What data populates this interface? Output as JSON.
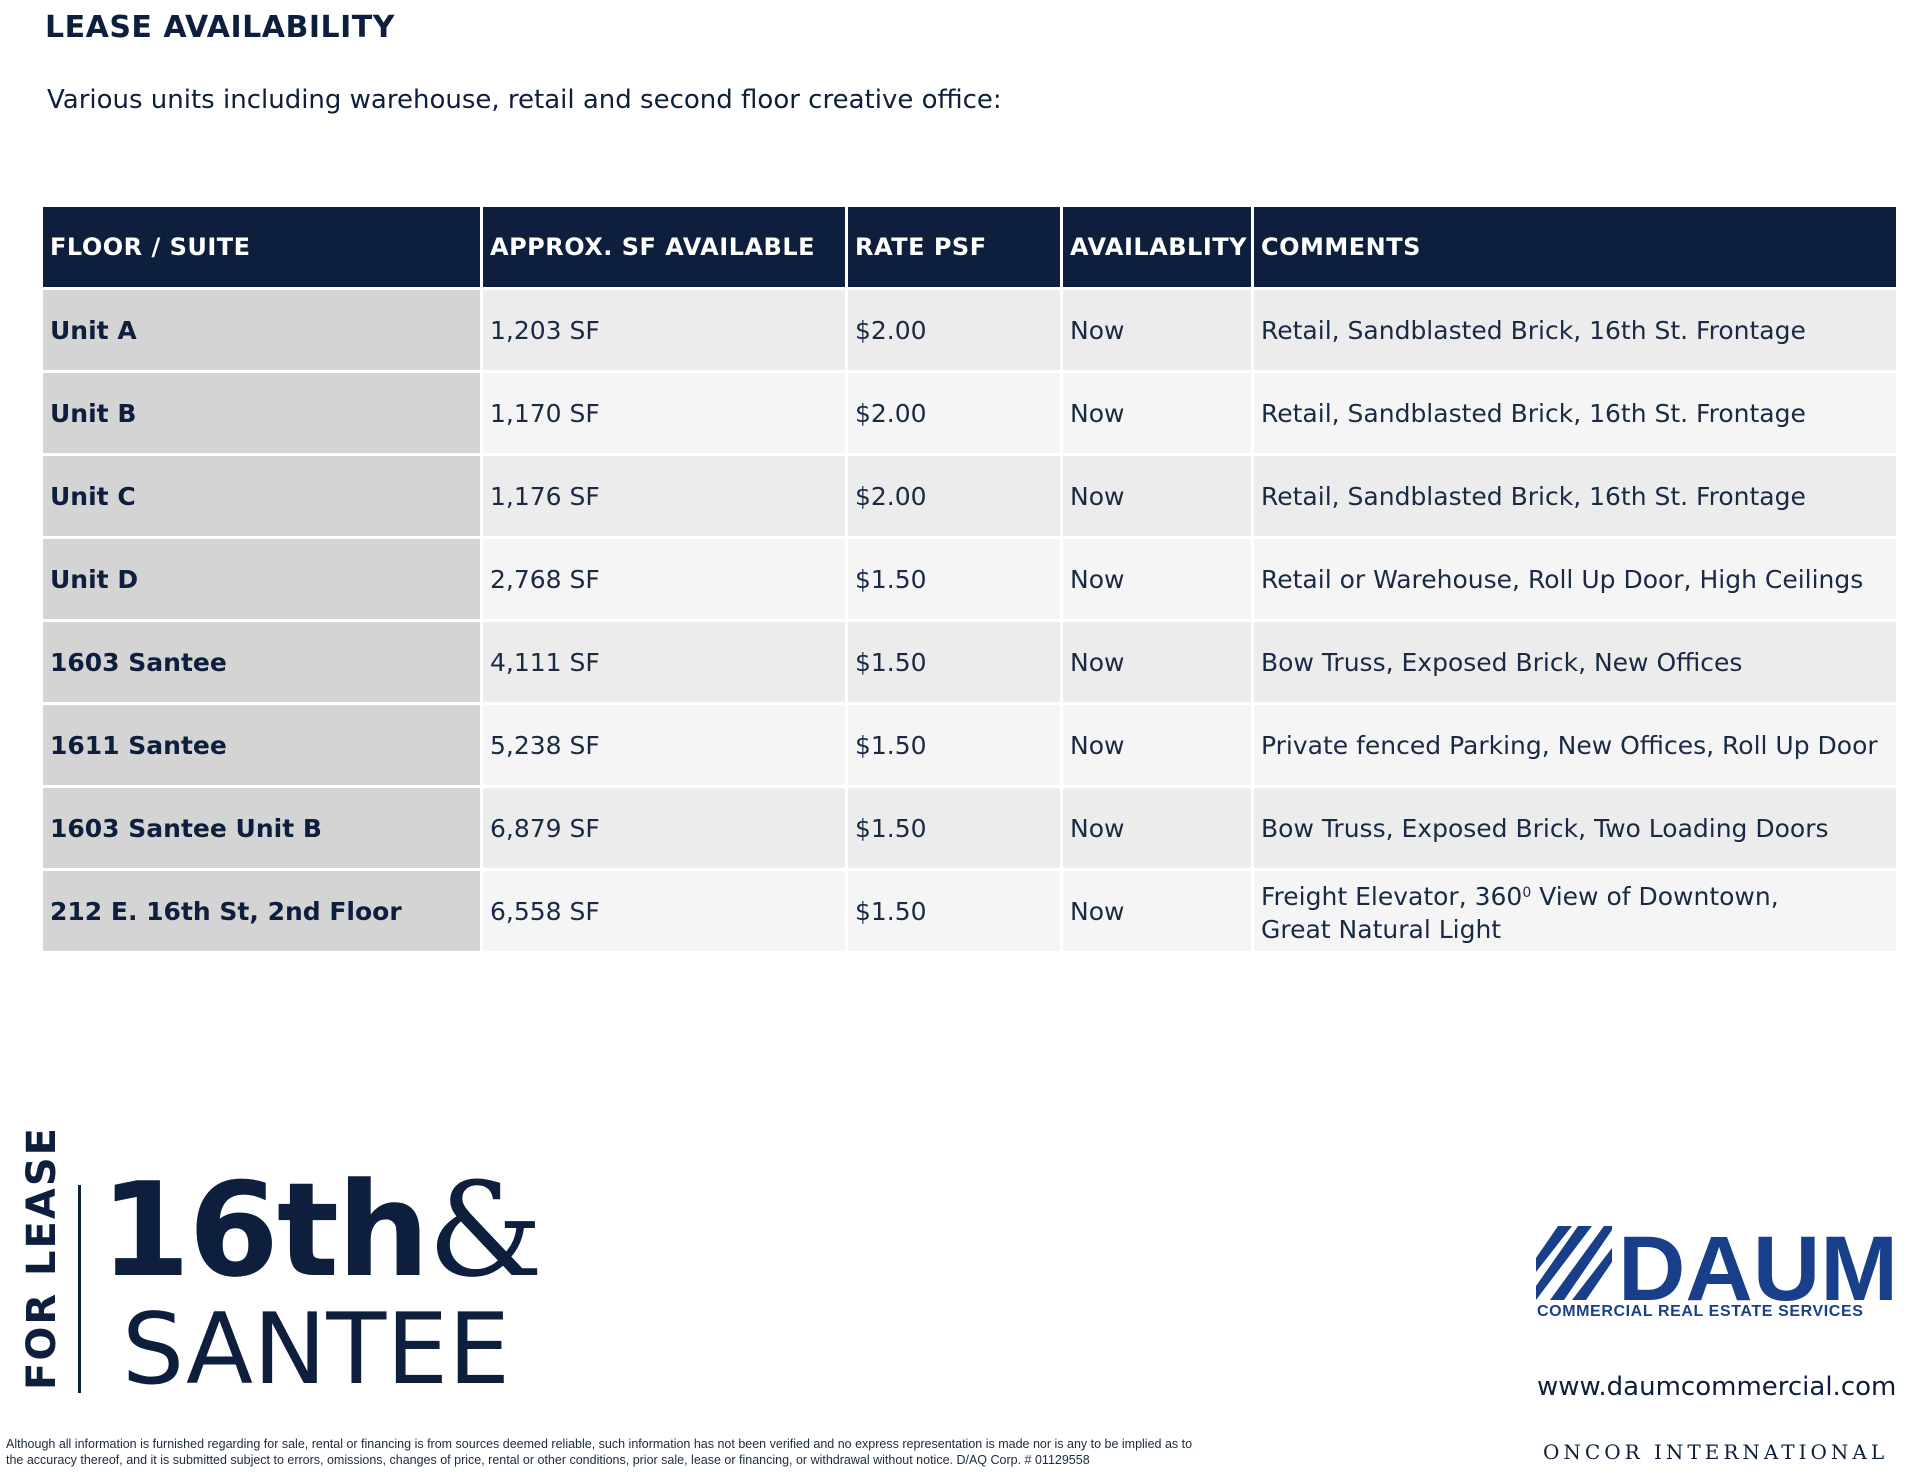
{
  "header": {
    "title": "LEASE AVAILABILITY",
    "subtitle": "Various units including warehouse, retail and second floor creative office:"
  },
  "table": {
    "columns": [
      "FLOOR / SUITE",
      "APPROX. SF AVAILABLE",
      "RATE PSF",
      "AVAILABLITY",
      "COMMENTS"
    ],
    "rows": [
      {
        "suite": "Unit A",
        "sf": "1,203 SF",
        "rate": "$2.00",
        "availability": "Now",
        "comments": "Retail, Sandblasted Brick, 16th St. Frontage"
      },
      {
        "suite": "Unit B",
        "sf": "1,170 SF",
        "rate": "$2.00",
        "availability": "Now",
        "comments": "Retail, Sandblasted Brick, 16th St. Frontage"
      },
      {
        "suite": "Unit C",
        "sf": "1,176 SF",
        "rate": "$2.00",
        "availability": "Now",
        "comments": "Retail, Sandblasted Brick, 16th St. Frontage"
      },
      {
        "suite": "Unit D",
        "sf": "2,768 SF",
        "rate": "$1.50",
        "availability": "Now",
        "comments": "Retail or Warehouse, Roll Up Door, High Ceilings"
      },
      {
        "suite": "1603 Santee",
        "sf": "4,111 SF",
        "rate": "$1.50",
        "availability": "Now",
        "comments": "Bow Truss, Exposed Brick, New Offices"
      },
      {
        "suite": "1611 Santee",
        "sf": "5,238 SF",
        "rate": "$1.50",
        "availability": "Now",
        "comments": "Private fenced Parking, New Offices, Roll Up Door"
      },
      {
        "suite": "1603 Santee Unit B",
        "sf": "6,879 SF",
        "rate": "$1.50",
        "availability": "Now",
        "comments": "Bow Truss, Exposed Brick, Two Loading Doors"
      },
      {
        "suite": "212 E. 16th St, 2nd Floor",
        "sf": "6,558 SF",
        "rate": "$1.50",
        "availability": "Now",
        "comments_part1": "Freight Elevator, 360",
        "comments_sup": "0",
        "comments_part2": " View of Downtown,",
        "comments_line2": "Great Natural Light"
      }
    ]
  },
  "branding": {
    "for_lease": "FOR LEASE",
    "logo_line1": "16th",
    "logo_amp": "&",
    "logo_line2": "SANTEE"
  },
  "broker": {
    "name": "DAUM",
    "tagline": "COMMERCIAL REAL ESTATE SERVICES",
    "url": "www.daumcommercial.com",
    "affiliate": "ONCOR INTERNATIONAL",
    "brand_color": "#1a3f8a"
  },
  "disclaimer": {
    "line1": "Although all information is furnished regarding for sale, rental or financing is from sources deemed reliable, such information has not been verified and no express representation is made nor is any to be implied as to",
    "line2": "the accuracy thereof, and it is submitted subject to errors, omissions, changes of price, rental or other conditions, prior sale, lease or financing, or withdrawal without notice.     D/AQ Corp. # 01129558"
  }
}
